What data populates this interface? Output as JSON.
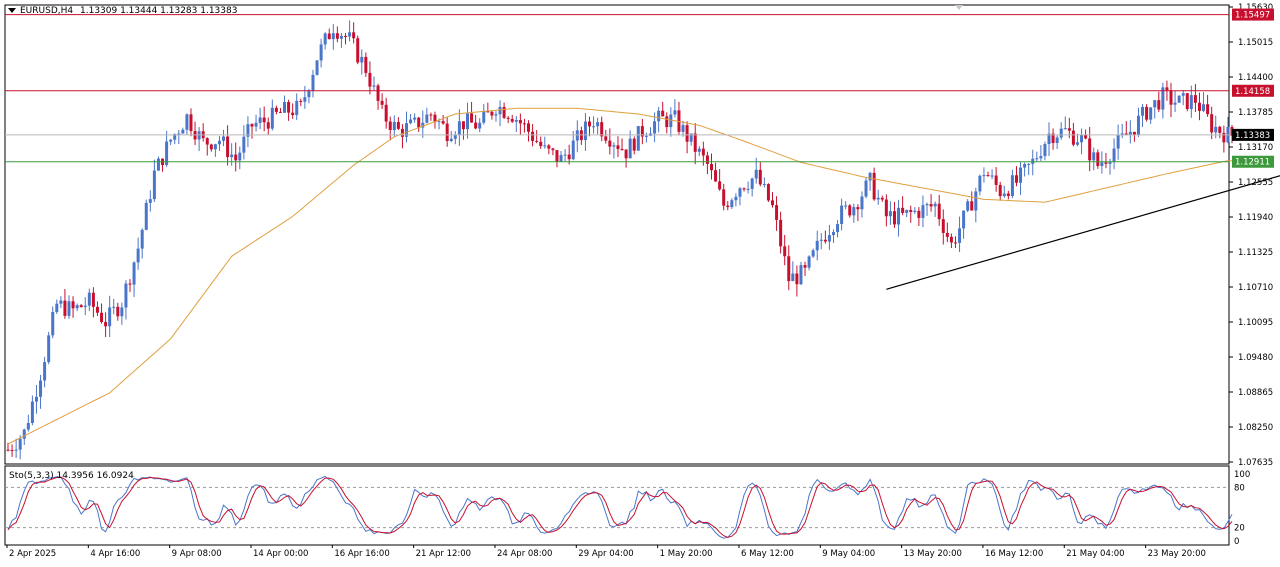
{
  "header": {
    "symbol": "EURUSD,H4",
    "ohlc": "1.13309 1.13444 1.13283 1.13383"
  },
  "stochastic": {
    "label": "Sto(5,3,3) 14.3956 16.0924",
    "levels": [
      "100",
      "80",
      "20",
      "0"
    ]
  },
  "colors": {
    "bull": "#4a76c9",
    "bear": "#c8102e",
    "ma": "#e0a040",
    "resistance": "#c8102e",
    "support": "#3c9a3c",
    "trendline": "#000000",
    "stoch_main": "#4a76c9",
    "stoch_signal": "#c8102e"
  },
  "chart_data": {
    "type": "candlestick",
    "symbol": "EURUSD",
    "timeframe": "H4",
    "ylim": [
      1.07635,
      1.1563
    ],
    "y_ticks": [
      "1.15630",
      "1.15015",
      "1.14400",
      "1.13785",
      "1.13170",
      "1.12555",
      "1.11940",
      "1.11325",
      "1.10710",
      "1.10095",
      "1.09480",
      "1.08865",
      "1.08250",
      "1.07635"
    ],
    "x_ticks": [
      "2 Apr 2025",
      "4 Apr 16:00",
      "9 Apr 08:00",
      "14 Apr 00:00",
      "16 Apr 16:00",
      "21 Apr 12:00",
      "24 Apr 08:00",
      "29 Apr 04:00",
      "1 May 20:00",
      "6 May 12:00",
      "9 May 04:00",
      "13 May 20:00",
      "16 May 12:00",
      "21 May 04:00",
      "23 May 20:00"
    ],
    "price_labels": [
      {
        "name": "resistance-upper",
        "value": "1.15497"
      },
      {
        "name": "resistance-lower",
        "value": "1.14158"
      },
      {
        "name": "current",
        "value": "1.13383"
      },
      {
        "name": "support",
        "value": "1.12911"
      }
    ],
    "anchors": [
      {
        "i": 0,
        "p": 1.0785
      },
      {
        "i": 4,
        "p": 1.0815
      },
      {
        "i": 8,
        "p": 1.092
      },
      {
        "i": 12,
        "p": 1.104
      },
      {
        "i": 16,
        "p": 1.103
      },
      {
        "i": 20,
        "p": 1.1045
      },
      {
        "i": 24,
        "p": 1.101
      },
      {
        "i": 28,
        "p": 1.1045
      },
      {
        "i": 32,
        "p": 1.114
      },
      {
        "i": 36,
        "p": 1.127
      },
      {
        "i": 40,
        "p": 1.133
      },
      {
        "i": 44,
        "p": 1.137
      },
      {
        "i": 48,
        "p": 1.1325
      },
      {
        "i": 52,
        "p": 1.133
      },
      {
        "i": 56,
        "p": 1.1295
      },
      {
        "i": 60,
        "p": 1.1355
      },
      {
        "i": 64,
        "p": 1.1365
      },
      {
        "i": 68,
        "p": 1.138
      },
      {
        "i": 72,
        "p": 1.1385
      },
      {
        "i": 76,
        "p": 1.1475
      },
      {
        "i": 80,
        "p": 1.153
      },
      {
        "i": 84,
        "p": 1.1505
      },
      {
        "i": 88,
        "p": 1.1455
      },
      {
        "i": 92,
        "p": 1.1375
      },
      {
        "i": 96,
        "p": 1.1345
      },
      {
        "i": 100,
        "p": 1.1355
      },
      {
        "i": 104,
        "p": 1.1375
      },
      {
        "i": 108,
        "p": 1.1345
      },
      {
        "i": 112,
        "p": 1.136
      },
      {
        "i": 116,
        "p": 1.1355
      },
      {
        "i": 120,
        "p": 1.139
      },
      {
        "i": 124,
        "p": 1.1375
      },
      {
        "i": 128,
        "p": 1.1345
      },
      {
        "i": 132,
        "p": 1.131
      },
      {
        "i": 136,
        "p": 1.1295
      },
      {
        "i": 140,
        "p": 1.133
      },
      {
        "i": 144,
        "p": 1.1365
      },
      {
        "i": 148,
        "p": 1.1335
      },
      {
        "i": 152,
        "p": 1.131
      },
      {
        "i": 156,
        "p": 1.1345
      },
      {
        "i": 160,
        "p": 1.1365
      },
      {
        "i": 164,
        "p": 1.1365
      },
      {
        "i": 168,
        "p": 1.1325
      },
      {
        "i": 172,
        "p": 1.1285
      },
      {
        "i": 176,
        "p": 1.1215
      },
      {
        "i": 180,
        "p": 1.125
      },
      {
        "i": 184,
        "p": 1.1265
      },
      {
        "i": 188,
        "p": 1.121
      },
      {
        "i": 192,
        "p": 1.1085
      },
      {
        "i": 196,
        "p": 1.1095
      },
      {
        "i": 200,
        "p": 1.1155
      },
      {
        "i": 204,
        "p": 1.1195
      },
      {
        "i": 208,
        "p": 1.1215
      },
      {
        "i": 212,
        "p": 1.1255
      },
      {
        "i": 216,
        "p": 1.1195
      },
      {
        "i": 220,
        "p": 1.1195
      },
      {
        "i": 224,
        "p": 1.1205
      },
      {
        "i": 228,
        "p": 1.1215
      },
      {
        "i": 232,
        "p": 1.1145
      },
      {
        "i": 236,
        "p": 1.1205
      },
      {
        "i": 240,
        "p": 1.1275
      },
      {
        "i": 244,
        "p": 1.124
      },
      {
        "i": 248,
        "p": 1.1255
      },
      {
        "i": 252,
        "p": 1.129
      },
      {
        "i": 256,
        "p": 1.134
      },
      {
        "i": 260,
        "p": 1.1345
      },
      {
        "i": 264,
        "p": 1.133
      },
      {
        "i": 268,
        "p": 1.1285
      },
      {
        "i": 272,
        "p": 1.1315
      },
      {
        "i": 276,
        "p": 1.1345
      },
      {
        "i": 280,
        "p": 1.138
      },
      {
        "i": 284,
        "p": 1.1405
      },
      {
        "i": 288,
        "p": 1.1395
      },
      {
        "i": 292,
        "p": 1.14
      },
      {
        "i": 296,
        "p": 1.1355
      },
      {
        "i": 300,
        "p": 1.1338
      }
    ],
    "ma_anchors": [
      {
        "i": 0,
        "p": 1.0795
      },
      {
        "i": 25,
        "p": 1.0885
      },
      {
        "i": 40,
        "p": 1.098
      },
      {
        "i": 55,
        "p": 1.1125
      },
      {
        "i": 70,
        "p": 1.1195
      },
      {
        "i": 85,
        "p": 1.1285
      },
      {
        "i": 95,
        "p": 1.1335
      },
      {
        "i": 110,
        "p": 1.1375
      },
      {
        "i": 125,
        "p": 1.1385
      },
      {
        "i": 140,
        "p": 1.1385
      },
      {
        "i": 155,
        "p": 1.1375
      },
      {
        "i": 170,
        "p": 1.1355
      },
      {
        "i": 180,
        "p": 1.133
      },
      {
        "i": 195,
        "p": 1.129
      },
      {
        "i": 210,
        "p": 1.1265
      },
      {
        "i": 225,
        "p": 1.1245
      },
      {
        "i": 240,
        "p": 1.1225
      },
      {
        "i": 255,
        "p": 1.122
      },
      {
        "i": 270,
        "p": 1.1245
      },
      {
        "i": 285,
        "p": 1.127
      },
      {
        "i": 300,
        "p": 1.1293
      }
    ],
    "levels": [
      {
        "name": "resistance-upper",
        "value": 1.15497,
        "color": "resistance"
      },
      {
        "name": "resistance-lower",
        "value": 1.14158,
        "color": "resistance"
      },
      {
        "name": "current",
        "value": 1.13383,
        "color": "current"
      },
      {
        "name": "support",
        "value": 1.12911,
        "color": "support"
      }
    ],
    "trendline": {
      "from": {
        "i": 216,
        "p": 1.1067
      },
      "to": {
        "i": 348,
        "p": 1.1339
      }
    },
    "stoch_ylim": [
      0,
      100
    ],
    "stoch_levels": [
      20,
      80
    ]
  }
}
